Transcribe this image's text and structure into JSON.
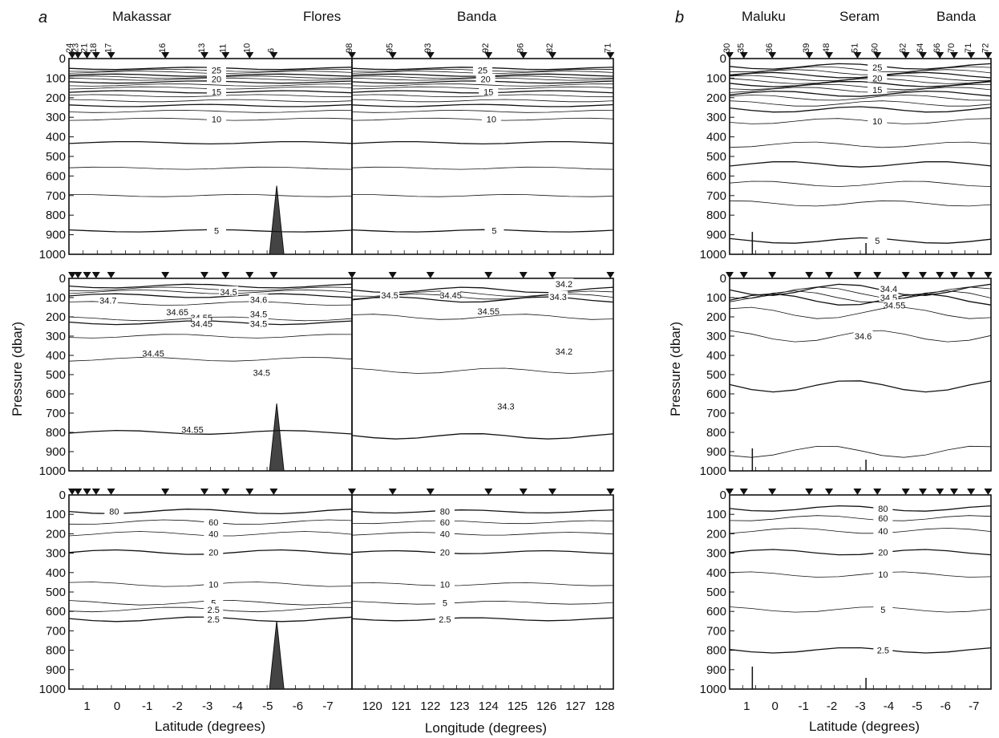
{
  "panel_a_label": "a",
  "panel_b_label": "b",
  "regions_a": [
    "Makassar",
    "Flores",
    "Banda"
  ],
  "regions_b": [
    "Maluku",
    "Seram",
    "Banda"
  ],
  "ylabel_a": "Pressure (dbar)",
  "ylabel_b": "Pressure (dbar)",
  "xlabel_a_left": "Latitude (degrees)",
  "xlabel_a_right": "Longitude (degrees)",
  "xlabel_b": "Latitude (degrees)",
  "stations_a_left": [
    "24",
    "23",
    "21",
    "18",
    "17",
    "16",
    "13",
    "11",
    "10",
    "6"
  ],
  "stations_a_left_lat": [
    0.6,
    1.3,
    1.0,
    0.7,
    0.2,
    -1.6,
    -2.9,
    -3.6,
    -4.4,
    -5.2
  ],
  "stations_a_right": [
    "98",
    "95",
    "93",
    "92",
    "86",
    "82",
    "71"
  ],
  "stations_a_right_lon": [
    119.3,
    120.7,
    122.0,
    124.0,
    125.2,
    126.2,
    128.2
  ],
  "stations_b": [
    "30",
    "35",
    "36",
    "39",
    "48",
    "51",
    "60",
    "62",
    "64",
    "66",
    "70",
    "71",
    "72"
  ],
  "stations_b_lat": [
    1.6,
    1.1,
    0.1,
    -1.2,
    -1.9,
    -2.9,
    -3.6,
    -4.6,
    -5.2,
    -5.8,
    -6.3,
    -6.9,
    -7.5
  ],
  "pressure_ticks": [
    "0",
    "100",
    "200",
    "300",
    "400",
    "500",
    "600",
    "700",
    "800",
    "900",
    "1000"
  ],
  "lat_ticks_a": [
    "1",
    "0",
    "-1",
    "-2",
    "-3",
    "-4",
    "-5",
    "-6",
    "-7"
  ],
  "lon_ticks": [
    "120",
    "121",
    "122",
    "123",
    "124",
    "125",
    "126",
    "127",
    "128"
  ],
  "lat_ticks_b": [
    "1",
    "0",
    "-1",
    "-2",
    "-3",
    "-4",
    "-5",
    "-6",
    "-7"
  ],
  "chart_data": {
    "type": "contour",
    "rows": [
      "temperature",
      "salinity",
      "oxygen"
    ],
    "y_range": [
      1000,
      0
    ],
    "x_range_a_left": [
      1.6,
      -7.8
    ],
    "x_range_a_right": [
      119.3,
      128.3
    ],
    "x_range_b": [
      1.6,
      -7.6
    ],
    "contours": [
      {
        "panel": "a",
        "row": 0,
        "labels": [
          "25",
          "20",
          "15",
          "10",
          "5"
        ],
        "pressures": [
          60,
          105,
          170,
          310,
          880
        ]
      },
      {
        "panel": "a",
        "row": 1,
        "labels": [
          "34.5",
          "34.6",
          "34.7",
          "34.65",
          "34.55",
          "34.45",
          "34.5",
          "34.5",
          "34.45",
          "34.5",
          "34.55",
          "34.2",
          "34.3",
          "34.45",
          "34.5",
          "34.55"
        ]
      },
      {
        "panel": "a",
        "row": 2,
        "labels": [
          "80",
          "60",
          "40",
          "20",
          "10",
          "5",
          "2.5",
          "2.5"
        ],
        "pressures": [
          85,
          140,
          200,
          295,
          460,
          555,
          640,
          590
        ]
      },
      {
        "panel": "b",
        "row": 0,
        "labels": [
          "25",
          "20",
          "15",
          "10",
          "5"
        ],
        "pressures": [
          45,
          100,
          160,
          320,
          930
        ]
      },
      {
        "panel": "b",
        "row": 1,
        "labels": [
          "34.4",
          "34.5",
          "34.55",
          "34.6"
        ]
      },
      {
        "panel": "b",
        "row": 2,
        "labels": [
          "80",
          "60",
          "40",
          "20",
          "10",
          "5",
          "2.5"
        ],
        "pressures": [
          70,
          120,
          185,
          295,
          410,
          590,
          800
        ]
      }
    ]
  }
}
